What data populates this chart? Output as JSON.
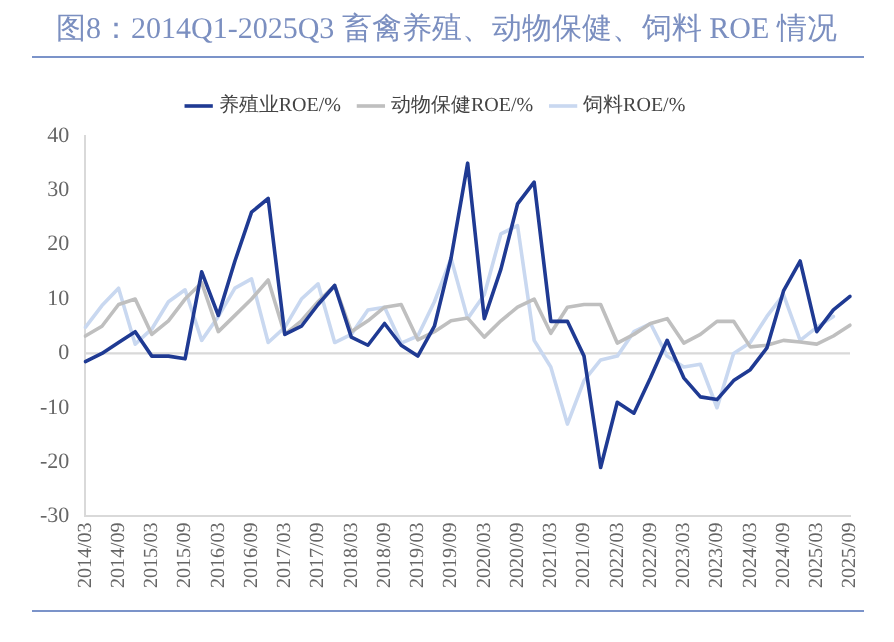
{
  "chart_data": {
    "type": "line",
    "title": "图8：2014Q1-2025Q3 畜禽养殖、动物保健、饲料 ROE 情况",
    "categories": [
      "2014/03",
      null,
      "2014/09",
      null,
      "2015/03",
      null,
      "2015/09",
      null,
      "2016/03",
      null,
      "2016/09",
      null,
      "2017/03",
      null,
      "2017/09",
      null,
      "2018/03",
      null,
      "2018/09",
      null,
      "2019/03",
      null,
      "2019/09",
      null,
      "2020/03",
      null,
      "2020/09",
      null,
      "2021/03",
      null,
      "2021/09",
      null,
      "2022/03",
      null,
      "2022/09",
      null,
      "2023/03",
      null,
      "2023/09",
      null,
      "2024/03",
      null,
      "2024/09",
      null,
      "2025/03",
      null,
      "2025/09"
    ],
    "series": [
      {
        "name": "养殖业ROE/%",
        "color": "#1f3a93",
        "values": [
          -1.5,
          0,
          2,
          4,
          -0.5,
          -0.5,
          -1,
          15,
          7,
          17,
          26,
          28.5,
          3.5,
          5,
          9,
          12.5,
          3,
          1.5,
          5.5,
          1.5,
          -0.5,
          5,
          17.5,
          35,
          6.4,
          15.5,
          27.5,
          31.5,
          5.9,
          5.9,
          -0.5,
          -21,
          -9,
          -11,
          -4.5,
          2.4,
          -4.5,
          -8,
          -8.5,
          -5,
          -3,
          1,
          11.5,
          17,
          4,
          8,
          10.5
        ]
      },
      {
        "name": "动物保健ROE/%",
        "color": "#bfbfbf",
        "values": [
          3.2,
          5,
          9,
          10,
          3.5,
          6,
          10,
          13,
          4,
          7,
          10,
          13.5,
          3.5,
          6,
          9.5,
          12.5,
          4,
          6,
          8.5,
          9,
          2.5,
          4,
          6,
          6.5,
          3,
          6,
          8.5,
          10,
          3.7,
          8.5,
          9,
          9,
          1.9,
          3.5,
          5.5,
          6.4,
          1.9,
          3.5,
          5.9,
          5.9,
          1.2,
          1.5,
          2.4,
          2.1,
          1.7,
          3.2,
          5.2
        ]
      },
      {
        "name": "饲料ROE/%",
        "color": "#c9d8f0",
        "values": [
          4.8,
          8.8,
          12,
          1.7,
          4.5,
          9.5,
          11.7,
          2.4,
          6.8,
          12,
          13.7,
          2,
          4.8,
          10,
          12.8,
          2,
          3.5,
          8,
          8.5,
          1.9,
          3.2,
          9.5,
          17.5,
          6.4,
          10.8,
          22,
          23.5,
          2.4,
          -2.5,
          -13,
          -5,
          -1.2,
          -0.5,
          4,
          5.5,
          -0.5,
          -2.5,
          -2,
          -10,
          0,
          2,
          6.8,
          10.8,
          2.4,
          4.8,
          6.8,
          null
        ]
      }
    ],
    "ylim": [
      -30,
      40
    ],
    "yticks": [
      -30,
      -20,
      -10,
      0,
      10,
      20,
      30,
      40
    ],
    "ref_lines": [
      {
        "axis": "y",
        "value": 0,
        "color": "#d9d9d9",
        "line_style": "solid"
      }
    ],
    "grid": false,
    "legend": "top",
    "marker": "none",
    "line_style": "solid"
  }
}
